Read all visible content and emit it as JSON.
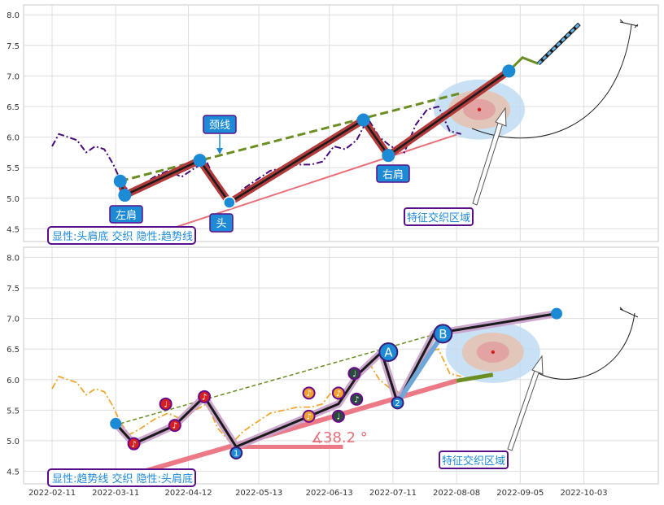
{
  "chart_data": [
    {
      "type": "line",
      "panel": "top",
      "ylim": [
        4.25,
        8.2
      ],
      "yticks": [
        "4.5",
        "5.0",
        "5.5",
        "6.0",
        "6.5",
        "7.0",
        "7.5",
        "8.0"
      ],
      "grid": true,
      "price_series": {
        "x": [
          "2022-02-11",
          "2022-02-14",
          "2022-02-18",
          "2022-02-22",
          "2022-02-26",
          "2022-03-02",
          "2022-03-06",
          "2022-03-10",
          "2022-03-13",
          "2022-03-17",
          "2022-03-22",
          "2022-03-28",
          "2022-04-03",
          "2022-04-09",
          "2022-04-15",
          "2022-04-20",
          "2022-04-25",
          "2022-05-01",
          "2022-05-06",
          "2022-05-12",
          "2022-05-18",
          "2022-05-24",
          "2022-05-30",
          "2022-06-05",
          "2022-06-10",
          "2022-06-15",
          "2022-06-20",
          "2022-06-25",
          "2022-06-30",
          "2022-07-05",
          "2022-07-10",
          "2022-07-16",
          "2022-07-21",
          "2022-07-26",
          "2022-07-31",
          "2022-08-05",
          "2022-08-10"
        ],
        "y": [
          5.85,
          6.05,
          6.0,
          5.95,
          5.75,
          5.85,
          5.8,
          5.55,
          5.3,
          5.1,
          5.2,
          5.35,
          5.45,
          5.35,
          5.5,
          5.6,
          5.2,
          4.95,
          5.15,
          5.3,
          5.45,
          5.5,
          5.55,
          5.55,
          5.6,
          5.85,
          5.8,
          5.95,
          6.3,
          6.0,
          5.85,
          5.75,
          6.2,
          6.45,
          6.5,
          6.1,
          6.05
        ]
      },
      "pattern_points": [
        {
          "x": "2022-03-13",
          "y": 5.28
        },
        {
          "x": "2022-03-15",
          "y": 5.05,
          "label": "左肩"
        },
        {
          "x": "2022-04-17",
          "y": 5.62
        },
        {
          "x": "2022-04-30",
          "y": 4.93,
          "label": "头"
        },
        {
          "x": "2022-06-28",
          "y": 6.28
        },
        {
          "x": "2022-07-09",
          "y": 5.7,
          "label": "右肩"
        },
        {
          "x": "2022-08-31",
          "y": 7.08
        }
      ],
      "neckline": {
        "label": "颈线",
        "x": [
          "2022-03-13",
          "2022-08-10"
        ],
        "y": [
          5.28,
          6.72
        ]
      },
      "support_line": {
        "x": [
          "2022-03-27",
          "2022-08-08"
        ],
        "y": [
          4.4,
          6.04
        ]
      },
      "projection": {
        "x": [
          "2022-08-31",
          "2022-09-06",
          "2022-09-13",
          "2022-10-01"
        ],
        "y": [
          7.08,
          7.3,
          7.2,
          7.85
        ]
      },
      "zone": {
        "label": "特征交织区域",
        "center": {
          "x": "2022-08-18",
          "y": 6.45
        }
      },
      "info_box": "显性:头肩底 交织 隐性:趋势线"
    },
    {
      "type": "line",
      "panel": "bottom",
      "ylim": [
        4.25,
        8.2
      ],
      "yticks": [
        "4.5",
        "5.0",
        "5.5",
        "6.0",
        "6.5",
        "7.0",
        "7.5",
        "8.0"
      ],
      "xticks": [
        "2022-02-11",
        "2022-03-11",
        "2022-04-12",
        "2022-05-13",
        "2022-06-13",
        "2022-07-11",
        "2022-08-08",
        "2022-09-05",
        "2022-10-03"
      ],
      "grid": true,
      "trend_points": [
        {
          "x": "2022-03-11",
          "y": 5.28
        },
        {
          "x": "2022-03-19",
          "y": 4.95
        },
        {
          "x": "2022-04-06",
          "y": 5.25
        },
        {
          "x": "2022-04-19",
          "y": 5.72
        },
        {
          "x": "2022-05-03",
          "y": 4.9
        },
        {
          "x": "2022-06-17",
          "y": 5.6
        },
        {
          "x": "2022-06-26",
          "y": 6.1
        },
        {
          "x": "2022-07-06",
          "y": 6.45
        },
        {
          "x": "2022-07-13",
          "y": 5.62
        },
        {
          "x": "2022-07-29",
          "y": 6.75
        },
        {
          "x": "2022-09-21",
          "y": 7.08
        }
      ],
      "markers": [
        {
          "x": "2022-03-19",
          "y": 4.95,
          "symbol": "♪",
          "style": "red"
        },
        {
          "x": "2022-04-02",
          "y": 5.6,
          "symbol": "♩",
          "style": "red"
        },
        {
          "x": "2022-04-06",
          "y": 5.25,
          "symbol": "♪",
          "style": "red"
        },
        {
          "x": "2022-04-19",
          "y": 5.72,
          "symbol": "♪",
          "style": "red"
        },
        {
          "x": "2022-05-03",
          "y": 4.8,
          "symbol": "1",
          "style": "blue"
        },
        {
          "x": "2022-06-04",
          "y": 5.4,
          "symbol": "♪",
          "style": "orange"
        },
        {
          "x": "2022-06-04",
          "y": 5.78,
          "symbol": "♪",
          "style": "orange"
        },
        {
          "x": "2022-06-17",
          "y": 5.78,
          "symbol": "♪",
          "style": "orange"
        },
        {
          "x": "2022-06-17",
          "y": 5.4,
          "symbol": "♩",
          "style": "dark"
        },
        {
          "x": "2022-06-24",
          "y": 6.1,
          "symbol": "♩",
          "style": "dark"
        },
        {
          "x": "2022-06-25",
          "y": 5.68,
          "symbol": "♪",
          "style": "dark"
        },
        {
          "x": "2022-07-09",
          "y": 6.45,
          "symbol": "A",
          "style": "big-blue"
        },
        {
          "x": "2022-07-13",
          "y": 5.62,
          "symbol": "2",
          "style": "blue"
        },
        {
          "x": "2022-08-02",
          "y": 6.75,
          "symbol": "B",
          "style": "big-blue"
        }
      ],
      "angle_label": "38.2 °",
      "zone": {
        "label": "特征交织区域"
      },
      "info_box": "显性:趋势线 交织 隐性:头肩底"
    }
  ]
}
